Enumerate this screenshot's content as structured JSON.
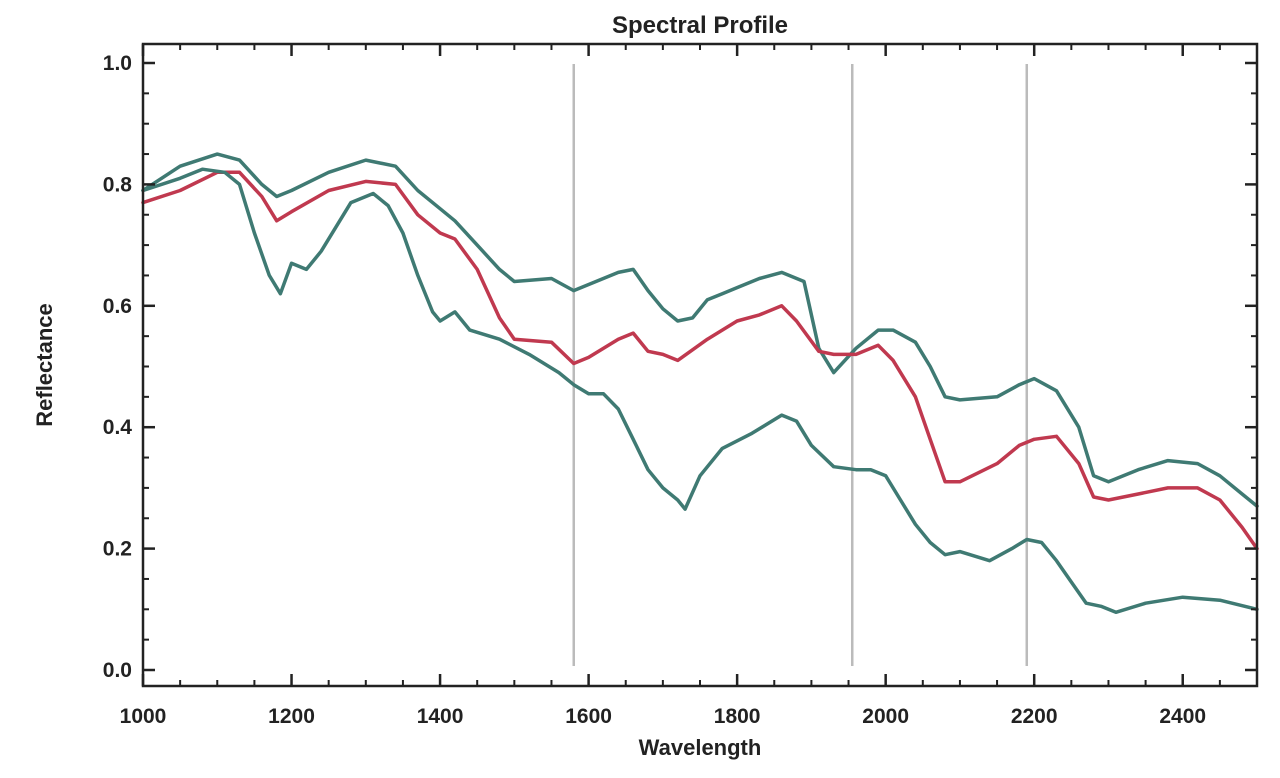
{
  "chart_data": {
    "type": "line",
    "title": "Spectral Profile",
    "xlabel": "Wavelength",
    "ylabel": "Reflectance",
    "xlim": [
      1000,
      2500
    ],
    "ylim": [
      0.0,
      1.02
    ],
    "x_ticks": [
      1000,
      1200,
      1400,
      1600,
      1800,
      2000,
      2200,
      2400
    ],
    "y_ticks": [
      "0.0",
      "0.2",
      "0.4",
      "0.6",
      "0.8",
      "1.0"
    ],
    "grid": false,
    "reference_lines_x": [
      1580,
      1955,
      2190
    ],
    "colors": {
      "upper": "#3f7a73",
      "mean": "#c0394f",
      "lower": "#3f7a73",
      "ref_line": "#bbbbbb",
      "axis": "#222222"
    },
    "series": [
      {
        "values_x": [
          1000,
          1050,
          1100,
          1130,
          1160,
          1180,
          1200,
          1250,
          1300,
          1340,
          1370,
          1400,
          1420,
          1450,
          1480,
          1500,
          1550,
          1580,
          1610,
          1640,
          1660,
          1680,
          1700,
          1720,
          1740,
          1760,
          1780,
          1800,
          1830,
          1860,
          1890,
          1910,
          1930,
          1960,
          1990,
          2010,
          2040,
          2060,
          2080,
          2100,
          2150,
          2180,
          2200,
          2230,
          2260,
          2280,
          2300,
          2340,
          2380,
          2420,
          2450,
          2480,
          2500
        ],
        "values_y": [
          0.79,
          0.83,
          0.85,
          0.84,
          0.8,
          0.78,
          0.79,
          0.82,
          0.84,
          0.83,
          0.79,
          0.76,
          0.74,
          0.7,
          0.66,
          0.64,
          0.645,
          0.625,
          0.64,
          0.655,
          0.66,
          0.625,
          0.595,
          0.575,
          0.58,
          0.61,
          0.62,
          0.63,
          0.645,
          0.655,
          0.64,
          0.53,
          0.49,
          0.53,
          0.56,
          0.56,
          0.54,
          0.5,
          0.45,
          0.445,
          0.45,
          0.47,
          0.48,
          0.46,
          0.4,
          0.32,
          0.31,
          0.33,
          0.345,
          0.34,
          0.32,
          0.29,
          0.27
        ]
      },
      {
        "values_x": [
          1000,
          1050,
          1100,
          1130,
          1160,
          1180,
          1200,
          1250,
          1300,
          1340,
          1370,
          1400,
          1420,
          1450,
          1480,
          1500,
          1550,
          1580,
          1600,
          1640,
          1660,
          1680,
          1700,
          1720,
          1760,
          1800,
          1830,
          1860,
          1880,
          1910,
          1930,
          1960,
          1990,
          2010,
          2040,
          2060,
          2080,
          2100,
          2150,
          2180,
          2200,
          2230,
          2260,
          2280,
          2300,
          2340,
          2380,
          2420,
          2450,
          2480,
          2500
        ],
        "values_y": [
          0.77,
          0.79,
          0.82,
          0.82,
          0.78,
          0.74,
          0.755,
          0.79,
          0.805,
          0.8,
          0.75,
          0.72,
          0.71,
          0.66,
          0.58,
          0.545,
          0.54,
          0.505,
          0.515,
          0.545,
          0.555,
          0.525,
          0.52,
          0.51,
          0.545,
          0.575,
          0.585,
          0.6,
          0.575,
          0.525,
          0.52,
          0.52,
          0.535,
          0.51,
          0.45,
          0.38,
          0.31,
          0.31,
          0.34,
          0.37,
          0.38,
          0.385,
          0.34,
          0.285,
          0.28,
          0.29,
          0.3,
          0.3,
          0.28,
          0.235,
          0.2
        ]
      },
      {
        "values_x": [
          1000,
          1050,
          1080,
          1110,
          1130,
          1150,
          1170,
          1185,
          1200,
          1220,
          1240,
          1280,
          1310,
          1330,
          1350,
          1370,
          1390,
          1400,
          1420,
          1440,
          1480,
          1520,
          1560,
          1580,
          1600,
          1620,
          1640,
          1660,
          1680,
          1700,
          1720,
          1730,
          1750,
          1780,
          1820,
          1860,
          1880,
          1900,
          1930,
          1960,
          1980,
          2000,
          2020,
          2040,
          2060,
          2080,
          2100,
          2140,
          2170,
          2190,
          2210,
          2230,
          2250,
          2270,
          2290,
          2310,
          2350,
          2400,
          2450,
          2500
        ],
        "values_y": [
          0.79,
          0.81,
          0.825,
          0.82,
          0.8,
          0.72,
          0.65,
          0.62,
          0.67,
          0.66,
          0.69,
          0.77,
          0.785,
          0.765,
          0.72,
          0.65,
          0.59,
          0.575,
          0.59,
          0.56,
          0.545,
          0.52,
          0.49,
          0.47,
          0.455,
          0.455,
          0.43,
          0.38,
          0.33,
          0.3,
          0.28,
          0.265,
          0.32,
          0.365,
          0.39,
          0.42,
          0.41,
          0.37,
          0.335,
          0.33,
          0.33,
          0.32,
          0.28,
          0.24,
          0.21,
          0.19,
          0.195,
          0.18,
          0.2,
          0.215,
          0.21,
          0.18,
          0.145,
          0.11,
          0.105,
          0.095,
          0.11,
          0.12,
          0.115,
          0.1
        ]
      }
    ]
  }
}
